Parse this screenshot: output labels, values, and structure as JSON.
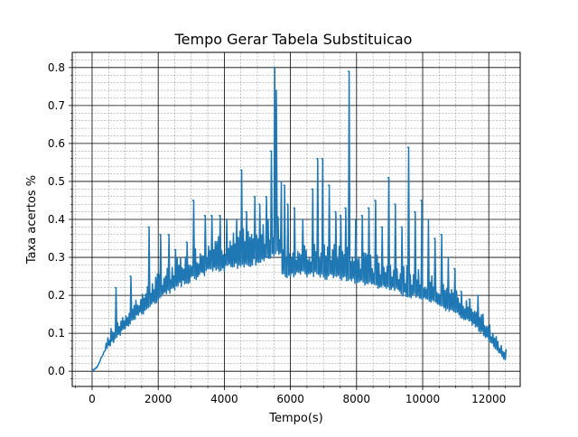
{
  "chart_data": {
    "type": "line",
    "title": "Tempo Gerar Tabela Substituicao",
    "xlabel": "Tempo(s)",
    "ylabel": "Taxa acertos %",
    "xlim": [
      -600,
      12950
    ],
    "ylim": [
      -0.04,
      0.84
    ],
    "xticks": [
      0,
      2000,
      4000,
      6000,
      8000,
      10000,
      12000
    ],
    "xtick_labels": [
      "0",
      "2000",
      "4000",
      "6000",
      "8000",
      "10000",
      "12000"
    ],
    "yticks": [
      0.0,
      0.1,
      0.2,
      0.3,
      0.4,
      0.5,
      0.6,
      0.7,
      0.8
    ],
    "ytick_labels": [
      "0.0",
      "0.1",
      "0.2",
      "0.3",
      "0.4",
      "0.5",
      "0.6",
      "0.7",
      "0.8"
    ],
    "grid": {
      "major": true,
      "minor": true
    },
    "legend": "none",
    "series": [
      {
        "color": "#1f77b4",
        "trend": {
          "x": [
            0,
            150,
            300,
            400,
            600,
            800,
            1000,
            1200,
            1500,
            1800,
            2000,
            2500,
            3000,
            3500,
            4000,
            4500,
            5000,
            5500,
            5700,
            5750,
            6000,
            6500,
            7000,
            7500,
            8000,
            8500,
            9000,
            9500,
            10000,
            10500,
            11000,
            11500,
            12000,
            12250,
            12500
          ],
          "base": [
            0.0,
            0.01,
            0.04,
            0.06,
            0.08,
            0.1,
            0.12,
            0.14,
            0.16,
            0.18,
            0.2,
            0.23,
            0.25,
            0.27,
            0.28,
            0.29,
            0.3,
            0.315,
            0.32,
            0.26,
            0.265,
            0.265,
            0.26,
            0.255,
            0.245,
            0.235,
            0.225,
            0.21,
            0.2,
            0.18,
            0.16,
            0.13,
            0.09,
            0.06,
            0.03
          ]
        },
        "spikes": [
          {
            "x": 700,
            "y": 0.22
          },
          {
            "x": 1150,
            "y": 0.25
          },
          {
            "x": 1700,
            "y": 0.38
          },
          {
            "x": 2050,
            "y": 0.36
          },
          {
            "x": 2300,
            "y": 0.36
          },
          {
            "x": 2500,
            "y": 0.32
          },
          {
            "x": 2850,
            "y": 0.34
          },
          {
            "x": 3050,
            "y": 0.45
          },
          {
            "x": 3400,
            "y": 0.41
          },
          {
            "x": 3600,
            "y": 0.41
          },
          {
            "x": 3850,
            "y": 0.41
          },
          {
            "x": 4050,
            "y": 0.4
          },
          {
            "x": 4350,
            "y": 0.4
          },
          {
            "x": 4500,
            "y": 0.53
          },
          {
            "x": 4650,
            "y": 0.42
          },
          {
            "x": 4900,
            "y": 0.46
          },
          {
            "x": 5050,
            "y": 0.44
          },
          {
            "x": 5250,
            "y": 0.46
          },
          {
            "x": 5400,
            "y": 0.58
          },
          {
            "x": 5500,
            "y": 0.8
          },
          {
            "x": 5540,
            "y": 0.74
          },
          {
            "x": 5700,
            "y": 0.5
          },
          {
            "x": 5800,
            "y": 0.49
          },
          {
            "x": 5900,
            "y": 0.44
          },
          {
            "x": 6100,
            "y": 0.43
          },
          {
            "x": 6350,
            "y": 0.4
          },
          {
            "x": 6650,
            "y": 0.48
          },
          {
            "x": 6800,
            "y": 0.56
          },
          {
            "x": 6950,
            "y": 0.56
          },
          {
            "x": 7150,
            "y": 0.49
          },
          {
            "x": 7350,
            "y": 0.42
          },
          {
            "x": 7500,
            "y": 0.41
          },
          {
            "x": 7650,
            "y": 0.43
          },
          {
            "x": 7750,
            "y": 0.79
          },
          {
            "x": 7950,
            "y": 0.4
          },
          {
            "x": 8150,
            "y": 0.41
          },
          {
            "x": 8350,
            "y": 0.43
          },
          {
            "x": 8550,
            "y": 0.45
          },
          {
            "x": 8750,
            "y": 0.38
          },
          {
            "x": 8950,
            "y": 0.51
          },
          {
            "x": 9150,
            "y": 0.44
          },
          {
            "x": 9350,
            "y": 0.38
          },
          {
            "x": 9550,
            "y": 0.59
          },
          {
            "x": 9750,
            "y": 0.42
          },
          {
            "x": 9950,
            "y": 0.45
          },
          {
            "x": 10150,
            "y": 0.4
          },
          {
            "x": 10350,
            "y": 0.35
          },
          {
            "x": 10550,
            "y": 0.36
          },
          {
            "x": 10750,
            "y": 0.3
          },
          {
            "x": 10950,
            "y": 0.27
          },
          {
            "x": 11150,
            "y": 0.21
          },
          {
            "x": 11400,
            "y": 0.19
          },
          {
            "x": 11650,
            "y": 0.2
          },
          {
            "x": 11850,
            "y": 0.12
          },
          {
            "x": 12050,
            "y": 0.09
          },
          {
            "x": 12300,
            "y": 0.06
          }
        ]
      }
    ]
  }
}
